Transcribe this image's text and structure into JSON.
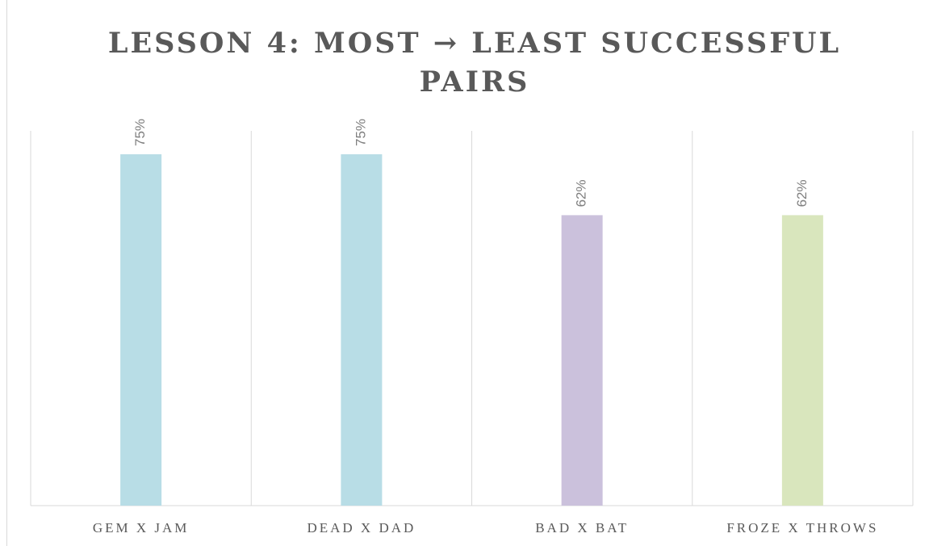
{
  "chart_data": {
    "type": "bar",
    "title": "LESSON 4: MOST → LEAST SUCCESSFUL PAIRS",
    "categories": [
      "GEM X JAM",
      "DEAD X DAD",
      "BAD X BAT",
      "FROZE X THROWS"
    ],
    "values": [
      75,
      75,
      62,
      62
    ],
    "value_labels": [
      "75%",
      "75%",
      "62%",
      "62%"
    ],
    "colors": [
      "#b8dde6",
      "#b8dde6",
      "#cbc1dc",
      "#d9e6bd"
    ],
    "ylim": [
      0,
      80
    ]
  }
}
